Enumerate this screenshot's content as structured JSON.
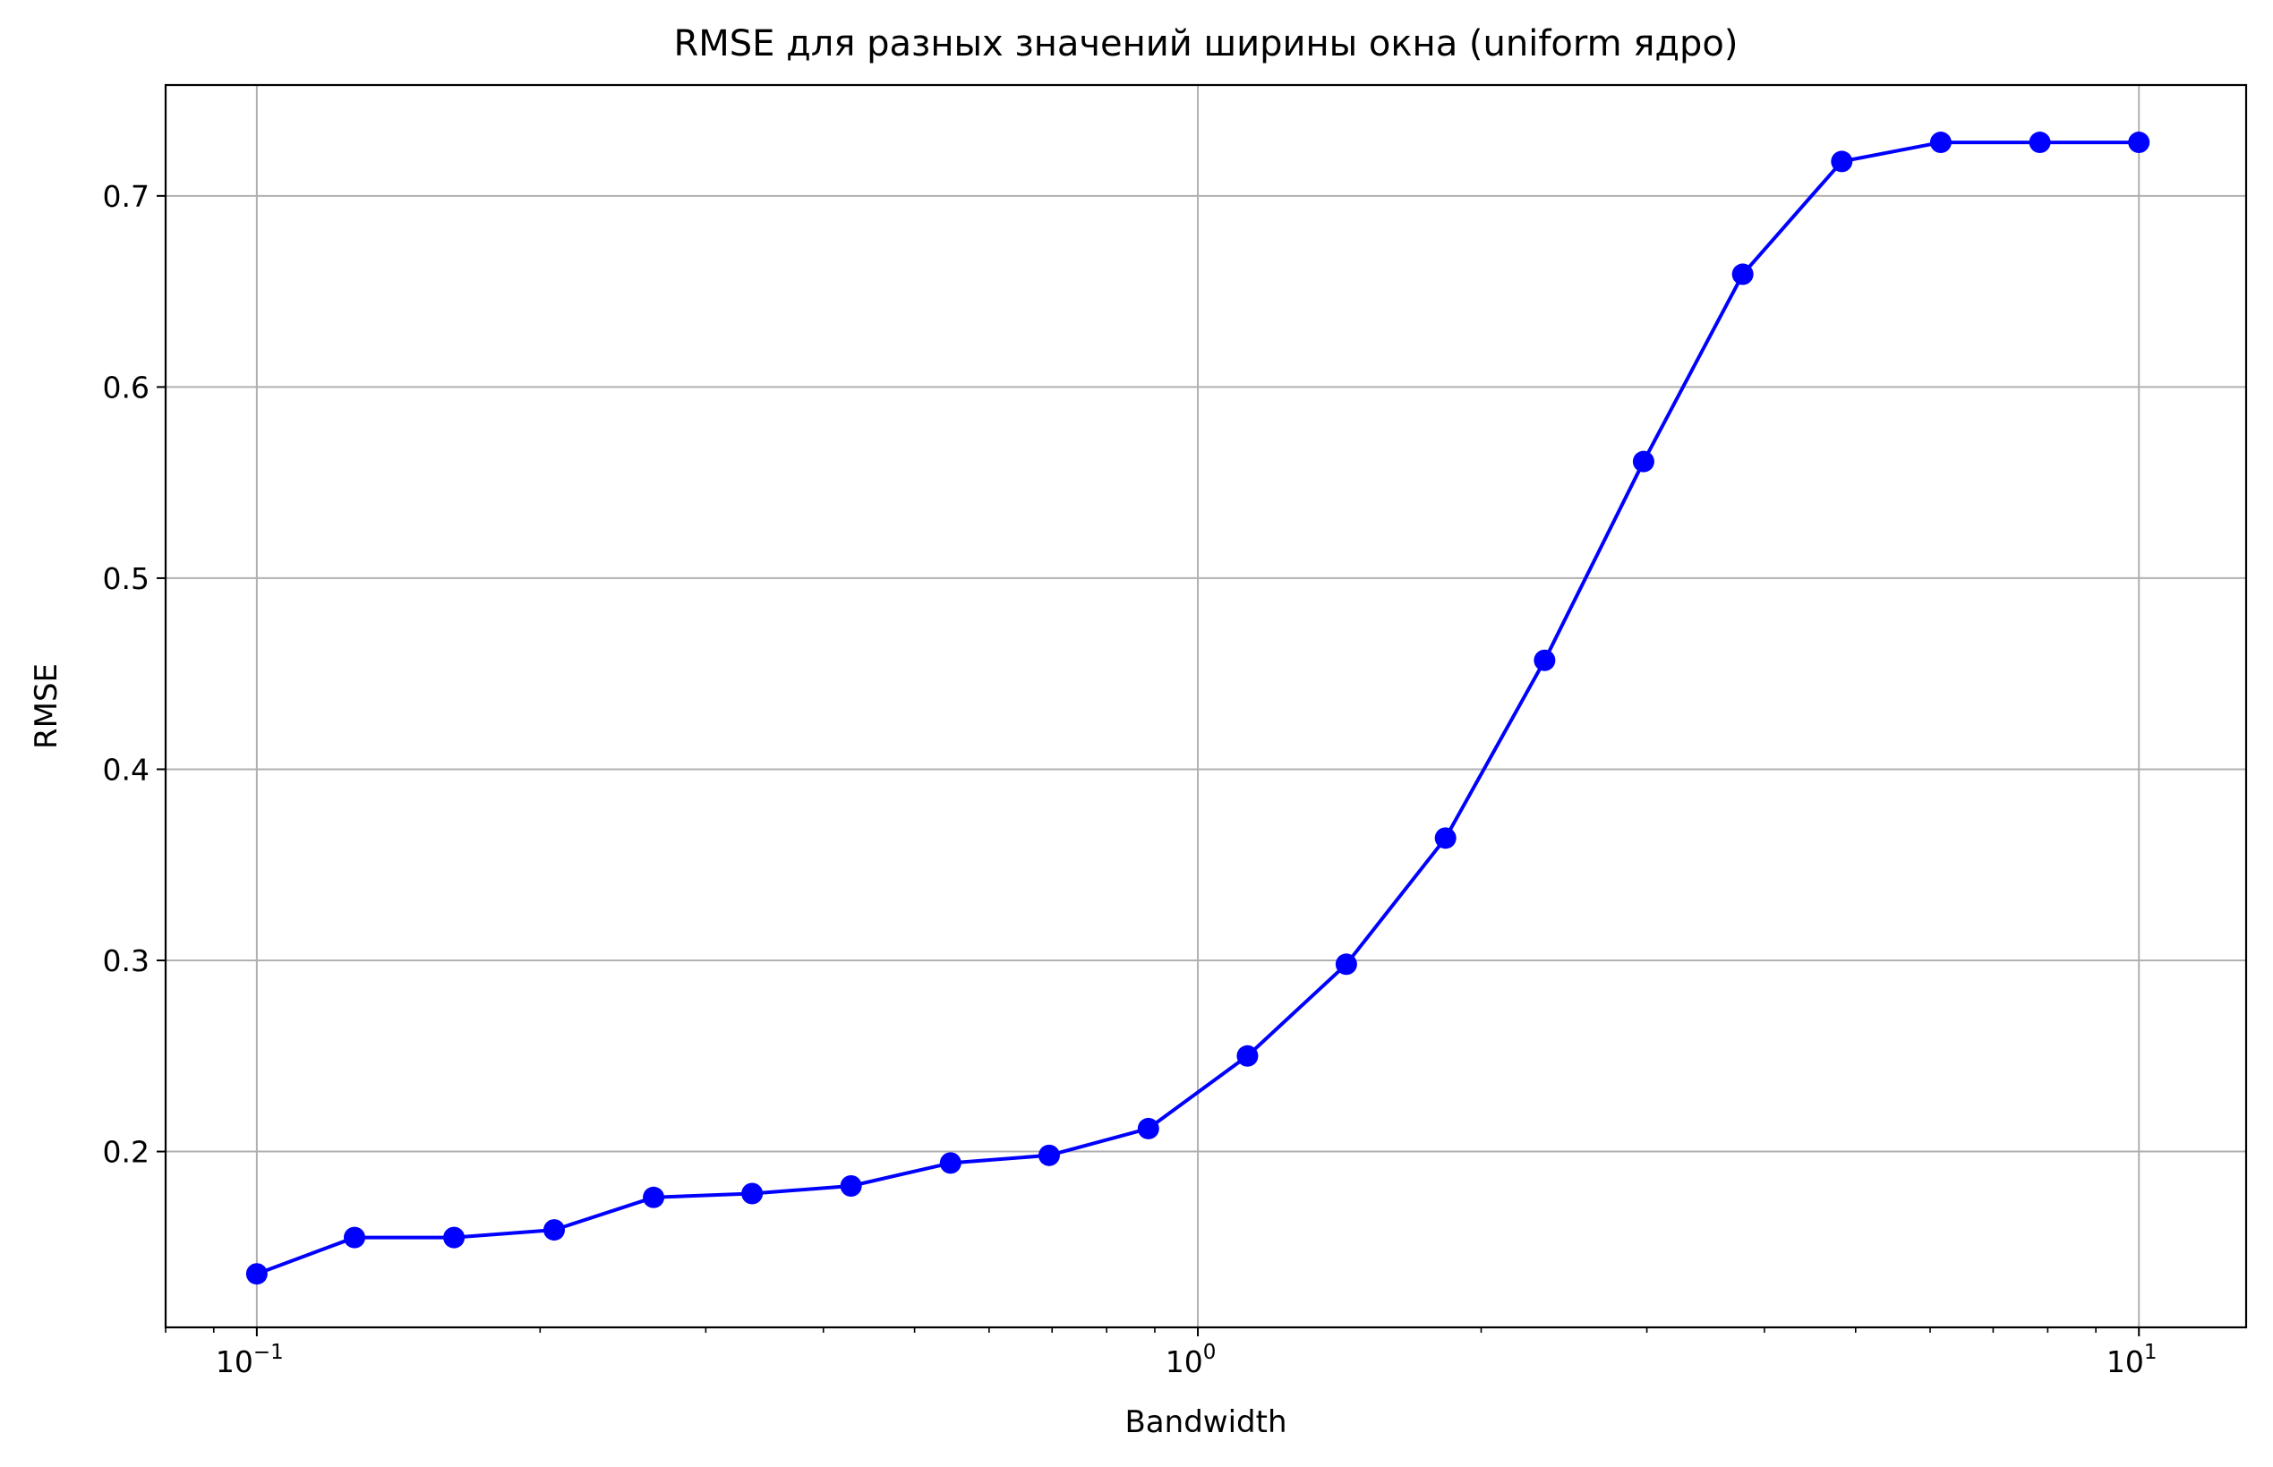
{
  "chart_data": {
    "type": "line",
    "title": "RMSE для разных значений ширины окна (uniform ядро)",
    "xlabel": "Bandwidth",
    "ylabel": "RMSE",
    "xscale": "log",
    "xlim": [
      0.08,
      13
    ],
    "ylim": [
      0.108,
      0.758
    ],
    "x": [
      0.1,
      0.127,
      0.162,
      0.207,
      0.264,
      0.336,
      0.428,
      0.546,
      0.695,
      0.886,
      1.129,
      1.438,
      1.833,
      2.336,
      2.976,
      3.793,
      4.833,
      6.158,
      7.848,
      10.0
    ],
    "series": [
      {
        "values": [
          0.136,
          0.155,
          0.155,
          0.159,
          0.176,
          0.178,
          0.182,
          0.194,
          0.198,
          0.212,
          0.25,
          0.298,
          0.364,
          0.457,
          0.561,
          0.659,
          0.718,
          0.728,
          0.728,
          0.728
        ]
      }
    ],
    "yticks": [
      0.2,
      0.3,
      0.4,
      0.5,
      0.6,
      0.7
    ],
    "ytick_labels": [
      "0.2",
      "0.3",
      "0.4",
      "0.5",
      "0.6",
      "0.7"
    ],
    "xticks_major": [
      {
        "value": 0.1,
        "base": "10",
        "exp": "−1"
      },
      {
        "value": 1,
        "base": "10",
        "exp": "0"
      },
      {
        "value": 10,
        "base": "10",
        "exp": "1"
      }
    ],
    "grid": true,
    "line_color": "#0000ff",
    "marker": "circle"
  }
}
